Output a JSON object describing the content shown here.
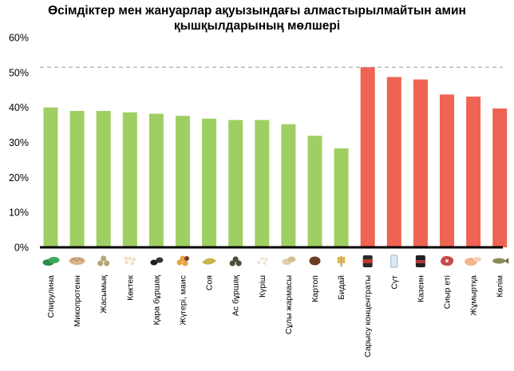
{
  "chart_data": {
    "type": "bar",
    "title_lines": [
      "Өсімдіктер мен жануарлар ақуызындағы алмастырылмайтын амин",
      "қышқылдарының мөлшері"
    ],
    "xlabel": "",
    "ylabel": "",
    "ylim": [
      0,
      60
    ],
    "y_ticks": [
      "0%",
      "10%",
      "20%",
      "30%",
      "40%",
      "50%",
      "60%"
    ],
    "y_tick_values": [
      0,
      10,
      20,
      30,
      40,
      50,
      60
    ],
    "grid": false,
    "reference_line": 51.5,
    "colors": {
      "plant": "#9fcf63",
      "animal": "#ee6352",
      "reference": "#9a9a9a",
      "baseline": "#000000"
    },
    "categories": [
      "Спирулина",
      "Микопротеин",
      "Жасымық",
      "Көктек",
      "Қара бұршақ",
      "Жүгері, маис",
      "Соя",
      "Ас бұршақ",
      "Күріш",
      "Сұлы жармасы",
      "Картоп",
      "Бидай",
      "Сарысу концентраты",
      "Сүт",
      "Казеин",
      "Сиыр еті",
      "Жұмыртқа",
      "Көлім"
    ],
    "values": [
      40.0,
      39.0,
      39.0,
      38.6,
      38.2,
      37.6,
      36.8,
      36.4,
      36.4,
      35.2,
      31.9,
      28.3,
      51.5,
      48.7,
      48.0,
      43.7,
      43.1,
      39.7
    ],
    "groups": [
      "plant",
      "plant",
      "plant",
      "plant",
      "plant",
      "plant",
      "plant",
      "plant",
      "plant",
      "plant",
      "plant",
      "plant",
      "animal",
      "animal",
      "animal",
      "animal",
      "animal",
      "animal"
    ],
    "icons": [
      "spirulina-icon",
      "mycoprotein-icon",
      "lentils-icon",
      "oats-icon",
      "black-beans-icon",
      "corn-icon",
      "soybean-icon",
      "peas-icon",
      "rice-icon",
      "oatmeal-icon",
      "potato-icon",
      "wheat-icon",
      "whey-jar-icon",
      "milk-glass-icon",
      "casein-jar-icon",
      "beef-icon",
      "eggs-icon",
      "fish-icon"
    ]
  }
}
